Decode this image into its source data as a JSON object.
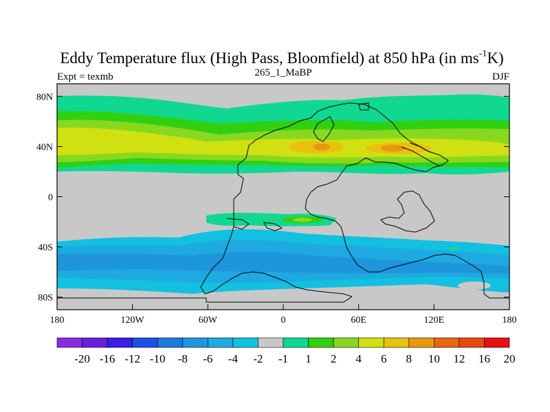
{
  "chart_data": {
    "type": "heatmap",
    "title": "Eddy Temperature flux (High Pass, Bloomfield) at 850 hPa (in ms",
    "title_unit_sup": "-1",
    "title_unit_end": "K)",
    "left_string": "Expt = texmb",
    "center_string": "265_1_MaBP",
    "right_string": "DJF",
    "variable": "Eddy Temperature flux",
    "level_hPa": 850,
    "units": "m s-1 K",
    "x_axis": {
      "range": [
        -180,
        180
      ],
      "ticks": [
        -180,
        -120,
        -60,
        0,
        60,
        120,
        180
      ],
      "tick_labels": [
        "180",
        "120W",
        "60W",
        "0",
        "60E",
        "120E",
        "180"
      ]
    },
    "y_axis": {
      "range": [
        -90,
        90
      ],
      "ticks": [
        80,
        40,
        0,
        -40,
        -80
      ],
      "tick_labels": [
        "80N",
        "40N",
        "0",
        "40S",
        "80S"
      ]
    },
    "background_value_band": "-1 to 1",
    "contour_levels": [
      -20,
      -16,
      -12,
      -10,
      -8,
      -6,
      -4,
      -2,
      -1,
      1,
      2,
      4,
      6,
      8,
      10,
      12,
      16,
      20
    ],
    "colorbar": {
      "colors": [
        "#8a2be2",
        "#6a1fd8",
        "#3a1ee6",
        "#1e50e6",
        "#1f78dc",
        "#1e96dc",
        "#1eaae0",
        "#12c0e0",
        "#c8c8c8",
        "#10d890",
        "#30d010",
        "#88d820",
        "#d0e010",
        "#e8c010",
        "#e89810",
        "#e86810",
        "#e84810",
        "#e81010"
      ],
      "labels": [
        "-20",
        "-16",
        "-12",
        "-10",
        "-8",
        "-6",
        "-4",
        "-2",
        "-1",
        "1",
        "2",
        "4",
        "6",
        "8",
        "10",
        "12",
        "16",
        "20"
      ]
    },
    "fields": [
      {
        "lat_range": [
          72,
          78
        ],
        "value_band": "1 to 2",
        "region": "northern high latitudes (part)"
      },
      {
        "lat_range": [
          20,
          70
        ],
        "value_band": "1 to 8",
        "region": "northern storm track"
      },
      {
        "lat_range": [
          52,
          66
        ],
        "lon_range": [
          -60,
          60
        ],
        "value_band": "1 to 2",
        "region": "northern extension"
      },
      {
        "lat_range": [
          -20,
          -12
        ],
        "lon_range": [
          -55,
          30
        ],
        "value_band": "1 to 6",
        "region": "tropical band"
      },
      {
        "lat_range": [
          -75,
          -25
        ],
        "value_band": "-6 to -1",
        "region": "southern storm track"
      }
    ]
  }
}
